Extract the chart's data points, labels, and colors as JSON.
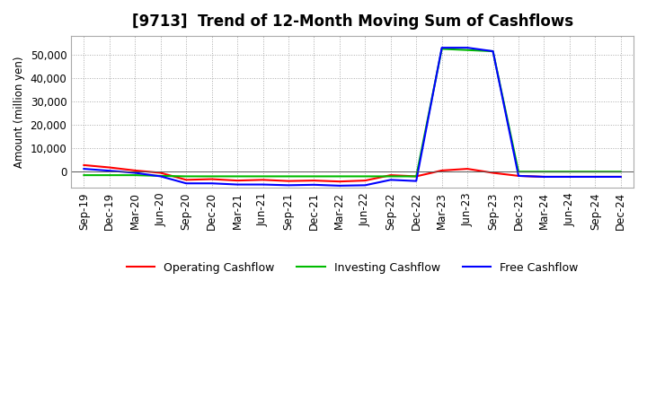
{
  "title": "[9713]  Trend of 12-Month Moving Sum of Cashflows",
  "ylabel": "Amount (million yen)",
  "background_color": "#ffffff",
  "x_labels": [
    "Sep-19",
    "Dec-19",
    "Mar-20",
    "Jun-20",
    "Sep-20",
    "Dec-20",
    "Mar-21",
    "Jun-21",
    "Sep-21",
    "Dec-21",
    "Mar-22",
    "Jun-22",
    "Sep-22",
    "Dec-22",
    "Mar-23",
    "Jun-23",
    "Sep-23",
    "Dec-23",
    "Mar-24",
    "Jun-24",
    "Sep-24",
    "Dec-24"
  ],
  "operating_cashflow": [
    2800,
    1800,
    500,
    -500,
    -3500,
    -3200,
    -3800,
    -3500,
    -4000,
    -3800,
    -4200,
    -3800,
    -1500,
    -2000,
    500,
    1200,
    -500,
    -1800,
    -2200,
    -2200,
    -2200,
    -2200
  ],
  "investing_cashflow": [
    -1500,
    -1500,
    -1500,
    -1800,
    -2000,
    -2000,
    -2000,
    -2000,
    -2000,
    -2000,
    -2000,
    -2000,
    -2000,
    -2000,
    52500,
    52000,
    51500,
    0,
    0,
    0,
    0,
    0
  ],
  "free_cashflow": [
    1200,
    400,
    -500,
    -2000,
    -5000,
    -5000,
    -5500,
    -5500,
    -5800,
    -5600,
    -6000,
    -5800,
    -3500,
    -4000,
    53000,
    53000,
    51500,
    -1800,
    -2200,
    -2200,
    -2200,
    -2200
  ],
  "operating_color": "#ff0000",
  "investing_color": "#00bb00",
  "free_color": "#0000ff",
  "ylim_min": -7000,
  "ylim_max": 58000,
  "yticks": [
    0,
    10000,
    20000,
    30000,
    40000,
    50000
  ],
  "line_width": 1.5,
  "title_fontsize": 12,
  "axis_fontsize": 8.5,
  "legend_fontsize": 9
}
